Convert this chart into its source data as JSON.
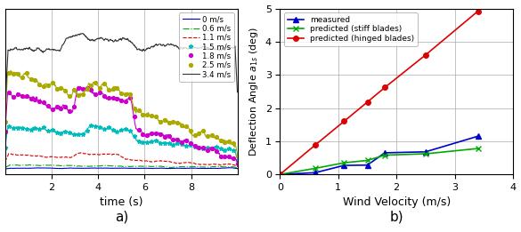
{
  "subplot_a": {
    "xlabel": "time (s)",
    "label_a": "a)",
    "xlim": [
      0,
      10
    ],
    "ylim": [
      -0.15,
      5.2
    ],
    "xticks": [
      2,
      4,
      6,
      8
    ],
    "grid": true,
    "series": [
      {
        "label": "0 m/s",
        "color": "#0000cc",
        "linestyle": "-",
        "marker": null,
        "markersize": 4
      },
      {
        "label": "0.6 m/s",
        "color": "#00aa00",
        "linestyle": "-.",
        "marker": null,
        "markersize": 4
      },
      {
        "label": "1.1 m/s",
        "color": "#dd0000",
        "linestyle": "--",
        "marker": null,
        "markersize": 4
      },
      {
        "label": "1.5 m/s",
        "color": "#00bbbb",
        "linestyle": "-",
        "marker": "*",
        "markersize": 4
      },
      {
        "label": "1.8 m/s",
        "color": "#cc00cc",
        "linestyle": "-",
        "marker": "o",
        "markersize": 3
      },
      {
        "label": "2.5 m/s",
        "color": "#aaaa00",
        "linestyle": "-",
        "marker": "o",
        "markersize": 3
      },
      {
        "label": "3.4 m/s",
        "color": "#333333",
        "linestyle": "-",
        "marker": null,
        "markersize": 4
      }
    ]
  },
  "subplot_b": {
    "xlabel": "Wind Velocity (m/s)",
    "ylabel": "Deflection Angle $a_{1s}$ (deg)",
    "label_b": "b)",
    "xlim": [
      0,
      4
    ],
    "ylim": [
      0,
      5
    ],
    "yticks": [
      0,
      1,
      2,
      3,
      4,
      5
    ],
    "xticks": [
      0,
      1,
      2,
      3,
      4
    ],
    "grid": true,
    "measured": {
      "x": [
        0.0,
        0.6,
        1.1,
        1.5,
        1.8,
        2.5,
        3.4
      ],
      "y": [
        0.0,
        0.05,
        0.27,
        0.28,
        0.65,
        0.68,
        1.15
      ],
      "color": "#0000cc",
      "marker": "^",
      "label": "measured"
    },
    "stiff": {
      "x": [
        0.0,
        0.6,
        1.1,
        1.5,
        1.8,
        2.5,
        3.4
      ],
      "y": [
        0.0,
        0.18,
        0.35,
        0.42,
        0.58,
        0.62,
        0.78
      ],
      "color": "#00aa00",
      "marker": "x",
      "label": "predicted (stiff blades)"
    },
    "hinged": {
      "x": [
        0.0,
        0.6,
        1.1,
        1.5,
        1.8,
        2.5,
        3.4
      ],
      "y": [
        0.0,
        0.88,
        1.6,
        2.18,
        2.62,
        3.6,
        4.92
      ],
      "color": "#dd0000",
      "marker": "o",
      "label": "predicted (hinged blades)"
    }
  }
}
